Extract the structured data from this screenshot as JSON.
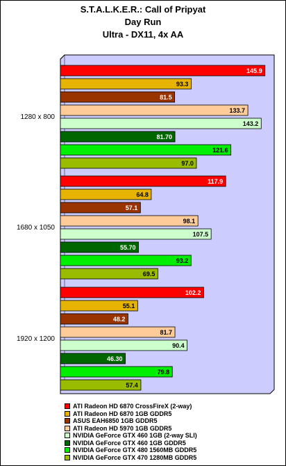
{
  "chart_data": {
    "type": "bar",
    "orientation": "horizontal",
    "title": "S.T.A.L.K.E.R.: Call of Pripyat",
    "subtitle_lines": [
      "Day Run",
      "Ultra - DX11, 4x AA"
    ],
    "categories": [
      "1280 x 800",
      "1680 x 1050",
      "1920 x 1200"
    ],
    "xlim": [
      0,
      160
    ],
    "grid": false,
    "legend_position": "bottom",
    "plot_background": "#ccccff",
    "series": [
      {
        "name": "ATI Radeon HD 6870 CrossFireX (2-way)",
        "color": "#ff0000",
        "values": [
          145.9,
          117.9,
          102.2
        ],
        "labels": [
          "145.9",
          "117.9",
          "102.2"
        ]
      },
      {
        "name": "ATI Radeon HD 6870 1GB GDDR5",
        "color": "#e6b400",
        "values": [
          93.3,
          64.8,
          55.1
        ],
        "labels": [
          "93.3",
          "64.8",
          "55.1"
        ]
      },
      {
        "name": "ASUS EAH6850 1GB GDDR5",
        "color": "#993300",
        "values": [
          81.5,
          57.1,
          48.2
        ],
        "labels": [
          "81.5",
          "57.1",
          "48.2"
        ]
      },
      {
        "name": "ATI Radeon HD 5970 1GB GDDR5",
        "color": "#ffcc99",
        "values": [
          133.7,
          98.1,
          81.7
        ],
        "labels": [
          "133.7",
          "98.1",
          "81.7"
        ]
      },
      {
        "name": "NVIDIA GeForce GTX 460 1GB (2-way SLI)",
        "color": "#ccffcc",
        "values": [
          143.2,
          107.5,
          90.4
        ],
        "labels": [
          "143.2",
          "107.5",
          "90.4"
        ]
      },
      {
        "name": "NVIDIA GeForce GTX 460 1GB GDDR5",
        "color": "#006600",
        "values": [
          81.7,
          55.7,
          46.3
        ],
        "labels": [
          "81.70",
          "55.70",
          "46.30"
        ]
      },
      {
        "name": "NVIDIA GeForce GTX 480 1560MB GDDR5",
        "color": "#00ee00",
        "values": [
          121.6,
          93.2,
          79.8
        ],
        "labels": [
          "121.6",
          "93.2",
          "79.8"
        ]
      },
      {
        "name": "NVIDIA GeForce GTX 470 1280MB GDDR5",
        "color": "#99bb00",
        "values": [
          97.0,
          69.5,
          57.4
        ],
        "labels": [
          "97.0",
          "69.5",
          "57.4"
        ]
      }
    ]
  }
}
